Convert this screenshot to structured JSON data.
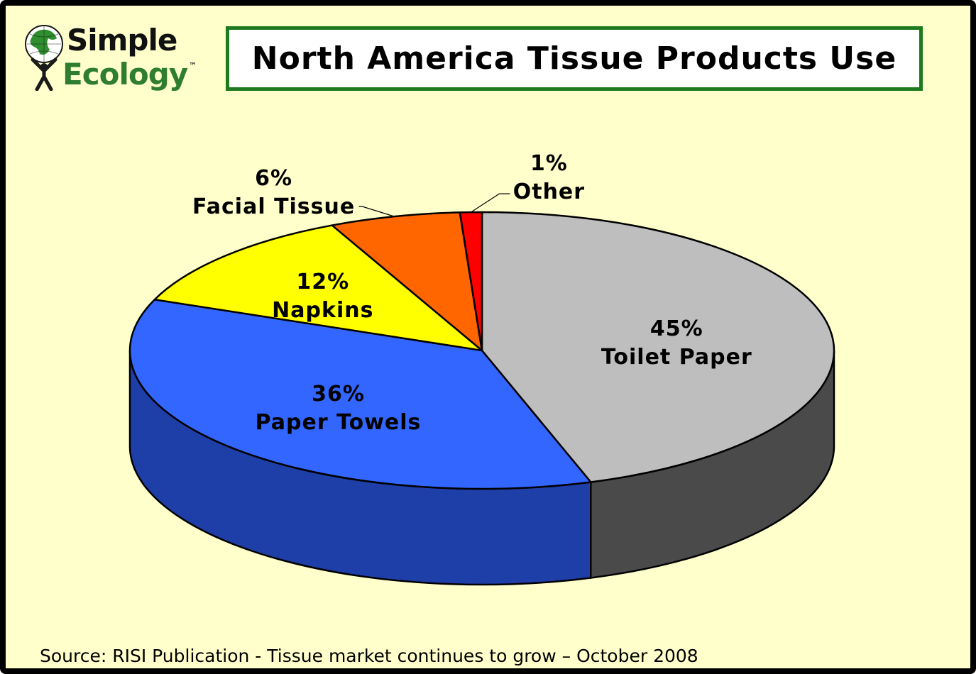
{
  "logo": {
    "line1": "Simple",
    "line2": "Ecology",
    "tm": "™"
  },
  "colors": {
    "background": "#ffffcc",
    "title_border": "#1f7a1f",
    "slices": [
      "#bebebe",
      "#3366ff",
      "#ffff00",
      "#ff6600",
      "#ff0000"
    ],
    "sides": [
      "#4a4a4a",
      "#1f3fa8",
      "#999900",
      "#993d00",
      "#990000"
    ]
  },
  "chart_data": {
    "type": "pie",
    "title": "North America Tissue Products Use",
    "slices": [
      {
        "label": "Toilet Paper",
        "value": 45,
        "percent_label": "45%"
      },
      {
        "label": "Paper Towels",
        "value": 36,
        "percent_label": "36%"
      },
      {
        "label": "Napkins",
        "value": 12,
        "percent_label": "12%"
      },
      {
        "label": "Facial Tissue",
        "value": 6,
        "percent_label": "6%"
      },
      {
        "label": "Other",
        "value": 1,
        "percent_label": "1%"
      }
    ],
    "style": "3d"
  },
  "source": "Source: RISI Publication - Tissue market continues to grow – October 2008"
}
